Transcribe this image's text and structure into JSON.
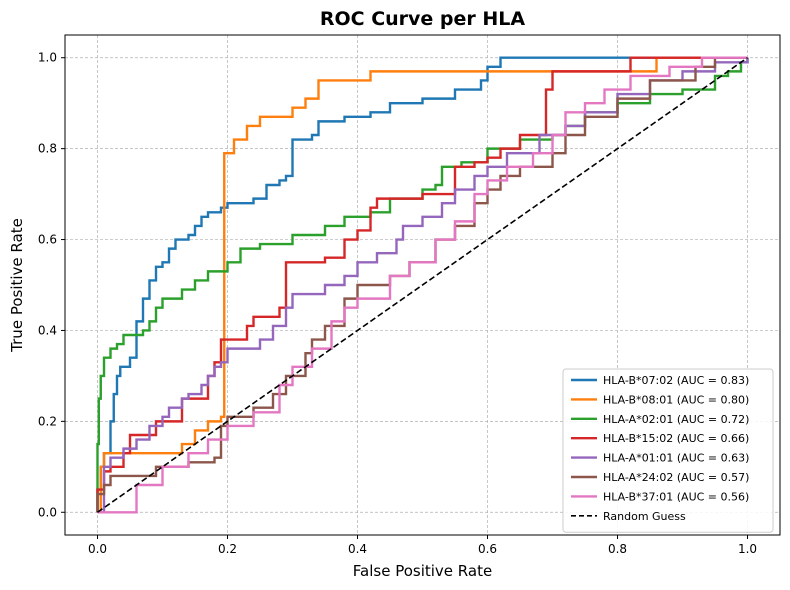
{
  "chart_data": {
    "type": "line",
    "title": "ROC Curve per HLA",
    "xlabel": "False Positive Rate",
    "ylabel": "True Positive Rate",
    "xlim": [
      -0.05,
      1.05
    ],
    "ylim": [
      -0.05,
      1.05
    ],
    "xticks": [
      "0.0",
      "0.2",
      "0.4",
      "0.6",
      "0.8",
      "1.0"
    ],
    "yticks": [
      "0.0",
      "0.2",
      "0.4",
      "0.6",
      "0.8",
      "1.0"
    ],
    "xtick_values": [
      0,
      0.2,
      0.4,
      0.6,
      0.8,
      1.0
    ],
    "ytick_values": [
      0,
      0.2,
      0.4,
      0.6,
      0.8,
      1.0
    ],
    "grid": true,
    "legend_position": "lower-right",
    "series": [
      {
        "name": "HLA-B*07:02 (AUC = 0.83)",
        "color": "#1f77b4",
        "points": [
          [
            0,
            0
          ],
          [
            0,
            0.05
          ],
          [
            0.005,
            0.1
          ],
          [
            0.01,
            0.13
          ],
          [
            0.02,
            0.2
          ],
          [
            0.025,
            0.26
          ],
          [
            0.03,
            0.3
          ],
          [
            0.035,
            0.32
          ],
          [
            0.05,
            0.34
          ],
          [
            0.06,
            0.42
          ],
          [
            0.07,
            0.47
          ],
          [
            0.08,
            0.51
          ],
          [
            0.09,
            0.54
          ],
          [
            0.1,
            0.55
          ],
          [
            0.11,
            0.58
          ],
          [
            0.12,
            0.6
          ],
          [
            0.14,
            0.61
          ],
          [
            0.15,
            0.63
          ],
          [
            0.16,
            0.65
          ],
          [
            0.17,
            0.66
          ],
          [
            0.19,
            0.67
          ],
          [
            0.2,
            0.68
          ],
          [
            0.24,
            0.69
          ],
          [
            0.26,
            0.72
          ],
          [
            0.28,
            0.73
          ],
          [
            0.29,
            0.74
          ],
          [
            0.3,
            0.82
          ],
          [
            0.33,
            0.83
          ],
          [
            0.34,
            0.86
          ],
          [
            0.38,
            0.87
          ],
          [
            0.42,
            0.88
          ],
          [
            0.45,
            0.9
          ],
          [
            0.5,
            0.91
          ],
          [
            0.55,
            0.93
          ],
          [
            0.59,
            0.95
          ],
          [
            0.6,
            0.98
          ],
          [
            0.62,
            1.0
          ],
          [
            0.7,
            1.0
          ],
          [
            1.0,
            1.0
          ]
        ]
      },
      {
        "name": "HLA-B*08:01 (AUC = 0.80)",
        "color": "#ff7f0e",
        "points": [
          [
            0,
            0
          ],
          [
            0.005,
            0.1
          ],
          [
            0.01,
            0.13
          ],
          [
            0.08,
            0.13
          ],
          [
            0.13,
            0.15
          ],
          [
            0.15,
            0.18
          ],
          [
            0.17,
            0.2
          ],
          [
            0.19,
            0.21
          ],
          [
            0.195,
            0.79
          ],
          [
            0.21,
            0.82
          ],
          [
            0.23,
            0.85
          ],
          [
            0.25,
            0.87
          ],
          [
            0.3,
            0.89
          ],
          [
            0.32,
            0.91
          ],
          [
            0.34,
            0.95
          ],
          [
            0.37,
            0.95
          ],
          [
            0.42,
            0.97
          ],
          [
            0.6,
            0.97
          ],
          [
            0.85,
            0.97
          ],
          [
            0.86,
            1.0
          ],
          [
            1.0,
            1.0
          ]
        ]
      },
      {
        "name": "HLA-A*02:01 (AUC = 0.72)",
        "color": "#2ca02c",
        "points": [
          [
            0,
            0
          ],
          [
            0,
            0.15
          ],
          [
            0.002,
            0.25
          ],
          [
            0.005,
            0.3
          ],
          [
            0.01,
            0.34
          ],
          [
            0.02,
            0.36
          ],
          [
            0.03,
            0.37
          ],
          [
            0.04,
            0.39
          ],
          [
            0.07,
            0.4
          ],
          [
            0.08,
            0.42
          ],
          [
            0.09,
            0.45
          ],
          [
            0.1,
            0.47
          ],
          [
            0.13,
            0.49
          ],
          [
            0.15,
            0.51
          ],
          [
            0.17,
            0.53
          ],
          [
            0.2,
            0.55
          ],
          [
            0.22,
            0.58
          ],
          [
            0.25,
            0.59
          ],
          [
            0.3,
            0.61
          ],
          [
            0.35,
            0.63
          ],
          [
            0.38,
            0.65
          ],
          [
            0.42,
            0.66
          ],
          [
            0.45,
            0.69
          ],
          [
            0.5,
            0.71
          ],
          [
            0.52,
            0.72
          ],
          [
            0.53,
            0.76
          ],
          [
            0.56,
            0.77
          ],
          [
            0.6,
            0.8
          ],
          [
            0.65,
            0.82
          ],
          [
            0.7,
            0.83
          ],
          [
            0.72,
            0.85
          ],
          [
            0.75,
            0.88
          ],
          [
            0.8,
            0.9
          ],
          [
            0.85,
            0.92
          ],
          [
            0.9,
            0.93
          ],
          [
            0.95,
            0.96
          ],
          [
            0.97,
            0.97
          ],
          [
            0.99,
            0.99
          ],
          [
            1.0,
            1.0
          ]
        ]
      },
      {
        "name": "HLA-B*15:02 (AUC = 0.66)",
        "color": "#d62728",
        "points": [
          [
            0,
            0
          ],
          [
            0,
            0.05
          ],
          [
            0.01,
            0.09
          ],
          [
            0.02,
            0.1
          ],
          [
            0.04,
            0.13
          ],
          [
            0.05,
            0.17
          ],
          [
            0.08,
            0.17
          ],
          [
            0.09,
            0.2
          ],
          [
            0.12,
            0.2
          ],
          [
            0.13,
            0.25
          ],
          [
            0.17,
            0.3
          ],
          [
            0.18,
            0.33
          ],
          [
            0.19,
            0.38
          ],
          [
            0.22,
            0.38
          ],
          [
            0.23,
            0.41
          ],
          [
            0.24,
            0.43
          ],
          [
            0.28,
            0.45
          ],
          [
            0.29,
            0.55
          ],
          [
            0.35,
            0.56
          ],
          [
            0.38,
            0.6
          ],
          [
            0.4,
            0.62
          ],
          [
            0.42,
            0.67
          ],
          [
            0.43,
            0.69
          ],
          [
            0.5,
            0.7
          ],
          [
            0.55,
            0.76
          ],
          [
            0.58,
            0.77
          ],
          [
            0.6,
            0.78
          ],
          [
            0.62,
            0.8
          ],
          [
            0.65,
            0.83
          ],
          [
            0.69,
            0.87
          ],
          [
            0.69,
            0.93
          ],
          [
            0.7,
            0.95
          ],
          [
            0.7,
            0.97
          ],
          [
            0.8,
            0.97
          ],
          [
            0.82,
            1.0
          ],
          [
            0.9,
            1.0
          ],
          [
            1.0,
            1.0
          ]
        ]
      },
      {
        "name": "HLA-A*01:01 (AUC = 0.63)",
        "color": "#9467bd",
        "points": [
          [
            0,
            0
          ],
          [
            0.01,
            0.1
          ],
          [
            0.02,
            0.12
          ],
          [
            0.04,
            0.14
          ],
          [
            0.06,
            0.16
          ],
          [
            0.08,
            0.19
          ],
          [
            0.1,
            0.21
          ],
          [
            0.11,
            0.23
          ],
          [
            0.13,
            0.25
          ],
          [
            0.14,
            0.26
          ],
          [
            0.16,
            0.28
          ],
          [
            0.17,
            0.3
          ],
          [
            0.18,
            0.32
          ],
          [
            0.19,
            0.33
          ],
          [
            0.2,
            0.36
          ],
          [
            0.23,
            0.36
          ],
          [
            0.25,
            0.38
          ],
          [
            0.27,
            0.41
          ],
          [
            0.29,
            0.45
          ],
          [
            0.3,
            0.48
          ],
          [
            0.35,
            0.5
          ],
          [
            0.38,
            0.52
          ],
          [
            0.4,
            0.55
          ],
          [
            0.43,
            0.57
          ],
          [
            0.46,
            0.6
          ],
          [
            0.47,
            0.63
          ],
          [
            0.5,
            0.65
          ],
          [
            0.53,
            0.68
          ],
          [
            0.55,
            0.71
          ],
          [
            0.58,
            0.74
          ],
          [
            0.6,
            0.76
          ],
          [
            0.63,
            0.79
          ],
          [
            0.68,
            0.83
          ],
          [
            0.72,
            0.85
          ],
          [
            0.75,
            0.88
          ],
          [
            0.8,
            0.92
          ],
          [
            0.85,
            0.95
          ],
          [
            0.9,
            0.97
          ],
          [
            0.95,
            0.99
          ],
          [
            1.0,
            1.0
          ]
        ]
      },
      {
        "name": "HLA-A*24:02 (AUC = 0.57)",
        "color": "#8c564b",
        "points": [
          [
            0,
            0
          ],
          [
            0,
            0.04
          ],
          [
            0.01,
            0.06
          ],
          [
            0.02,
            0.08
          ],
          [
            0.08,
            0.08
          ],
          [
            0.09,
            0.1
          ],
          [
            0.13,
            0.1
          ],
          [
            0.14,
            0.11
          ],
          [
            0.18,
            0.12
          ],
          [
            0.19,
            0.19
          ],
          [
            0.2,
            0.21
          ],
          [
            0.24,
            0.23
          ],
          [
            0.27,
            0.26
          ],
          [
            0.29,
            0.3
          ],
          [
            0.32,
            0.35
          ],
          [
            0.33,
            0.38
          ],
          [
            0.35,
            0.41
          ],
          [
            0.38,
            0.47
          ],
          [
            0.4,
            0.5
          ],
          [
            0.45,
            0.52
          ],
          [
            0.48,
            0.55
          ],
          [
            0.52,
            0.6
          ],
          [
            0.55,
            0.63
          ],
          [
            0.58,
            0.68
          ],
          [
            0.6,
            0.71
          ],
          [
            0.62,
            0.74
          ],
          [
            0.65,
            0.76
          ],
          [
            0.7,
            0.79
          ],
          [
            0.72,
            0.83
          ],
          [
            0.75,
            0.87
          ],
          [
            0.8,
            0.91
          ],
          [
            0.85,
            0.95
          ],
          [
            0.92,
            0.98
          ],
          [
            0.95,
            1.0
          ],
          [
            1.0,
            1.0
          ]
        ]
      },
      {
        "name": "HLA-B*37:01 (AUC = 0.56)",
        "color": "#e377c2",
        "points": [
          [
            0,
            0
          ],
          [
            0.05,
            0
          ],
          [
            0.06,
            0.06
          ],
          [
            0.1,
            0.1
          ],
          [
            0.14,
            0.13
          ],
          [
            0.17,
            0.16
          ],
          [
            0.2,
            0.19
          ],
          [
            0.24,
            0.22
          ],
          [
            0.28,
            0.28
          ],
          [
            0.3,
            0.32
          ],
          [
            0.33,
            0.36
          ],
          [
            0.36,
            0.42
          ],
          [
            0.38,
            0.45
          ],
          [
            0.4,
            0.47
          ],
          [
            0.45,
            0.52
          ],
          [
            0.48,
            0.55
          ],
          [
            0.52,
            0.6
          ],
          [
            0.55,
            0.64
          ],
          [
            0.58,
            0.7
          ],
          [
            0.6,
            0.73
          ],
          [
            0.63,
            0.76
          ],
          [
            0.67,
            0.79
          ],
          [
            0.7,
            0.83
          ],
          [
            0.72,
            0.88
          ],
          [
            0.75,
            0.9
          ],
          [
            0.78,
            0.93
          ],
          [
            0.82,
            0.96
          ],
          [
            0.88,
            0.98
          ],
          [
            0.93,
            1.0
          ],
          [
            1.0,
            1.0
          ]
        ]
      }
    ],
    "baseline": {
      "name": "Random Guess",
      "color": "#000000",
      "points": [
        [
          0,
          0
        ],
        [
          1,
          1
        ]
      ]
    }
  }
}
